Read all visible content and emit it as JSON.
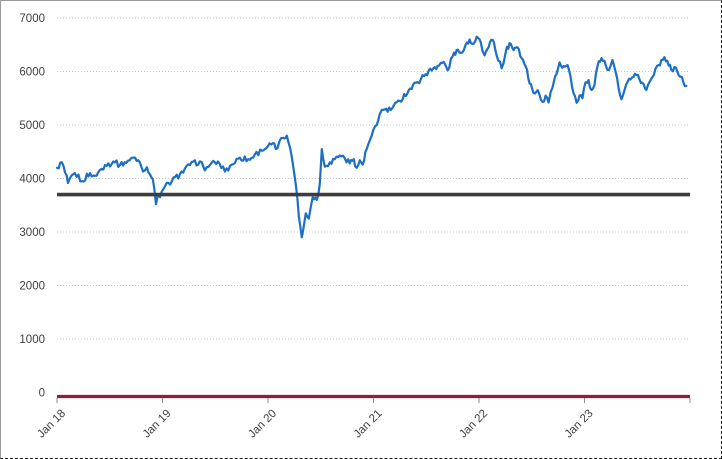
{
  "chart_data": {
    "type": "line",
    "title": "",
    "xlabel": "",
    "ylabel": "",
    "legend": "none",
    "grid": {
      "style": "dotted",
      "color": "#c9c9c9"
    },
    "label_color": "#3f3f3f",
    "tick_color": "#8c8c8c",
    "x_axis": {
      "lim": [
        2018.0,
        2024.0
      ],
      "tick_marks": [
        2018,
        2019,
        2020,
        2021,
        2022,
        2023,
        2024
      ],
      "tick_labels": [
        {
          "t": 2018,
          "label": "Jan 18"
        },
        {
          "t": 2019,
          "label": "Jan 19"
        },
        {
          "t": 2020,
          "label": "Jan 20"
        },
        {
          "t": 2021,
          "label": "Jan 21"
        },
        {
          "t": 2022,
          "label": "Jan 22"
        },
        {
          "t": 2023,
          "label": "Jan 23"
        }
      ]
    },
    "y_axis": {
      "lim": [
        0,
        7000
      ],
      "ticks": [
        0,
        1000,
        2000,
        3000,
        4000,
        5000,
        6000,
        7000
      ]
    },
    "reference_lines": [
      {
        "name": "threshold-line-3700",
        "value": 3700,
        "color": "#3d3d3d",
        "width": 3.6
      },
      {
        "name": "baseline-axis-0",
        "value": 0,
        "color": "#8f1d3d",
        "width": 3.2
      }
    ],
    "noise_amplitude": 55,
    "series": [
      {
        "name": "index-price",
        "color": "#1c6fc4",
        "width": 2.2,
        "points": [
          [
            2018.0,
            4200
          ],
          [
            2018.047,
            4300
          ],
          [
            2018.104,
            3915
          ],
          [
            2018.17,
            4100
          ],
          [
            2018.237,
            3950
          ],
          [
            2018.313,
            4100
          ],
          [
            2018.36,
            4050
          ],
          [
            2018.455,
            4250
          ],
          [
            2018.549,
            4300
          ],
          [
            2018.597,
            4250
          ],
          [
            2018.672,
            4330
          ],
          [
            2018.739,
            4390
          ],
          [
            2018.786,
            4300
          ],
          [
            2018.815,
            4130
          ],
          [
            2018.852,
            4210
          ],
          [
            2018.881,
            4080
          ],
          [
            2018.909,
            3980
          ],
          [
            2018.938,
            3520
          ],
          [
            2018.957,
            3700
          ],
          [
            2018.976,
            3650
          ],
          [
            2019.023,
            3850
          ],
          [
            2019.089,
            3950
          ],
          [
            2019.165,
            4080
          ],
          [
            2019.26,
            4250
          ],
          [
            2019.354,
            4320
          ],
          [
            2019.402,
            4150
          ],
          [
            2019.449,
            4250
          ],
          [
            2019.525,
            4320
          ],
          [
            2019.591,
            4130
          ],
          [
            2019.657,
            4260
          ],
          [
            2019.733,
            4390
          ],
          [
            2019.828,
            4350
          ],
          [
            2019.875,
            4450
          ],
          [
            2019.942,
            4520
          ],
          [
            2019.998,
            4600
          ],
          [
            2020.046,
            4660
          ],
          [
            2020.074,
            4550
          ],
          [
            2020.14,
            4760
          ],
          [
            2020.178,
            4800
          ],
          [
            2020.226,
            4400
          ],
          [
            2020.263,
            3900
          ],
          [
            2020.292,
            3300
          ],
          [
            2020.32,
            2900
          ],
          [
            2020.358,
            3350
          ],
          [
            2020.387,
            3250
          ],
          [
            2020.424,
            3650
          ],
          [
            2020.462,
            3600
          ],
          [
            2020.491,
            3900
          ],
          [
            2020.51,
            4550
          ],
          [
            2020.538,
            4220
          ],
          [
            2020.586,
            4300
          ],
          [
            2020.633,
            4360
          ],
          [
            2020.68,
            4430
          ],
          [
            2020.728,
            4380
          ],
          [
            2020.775,
            4280
          ],
          [
            2020.813,
            4360
          ],
          [
            2020.841,
            4200
          ],
          [
            2020.87,
            4340
          ],
          [
            2020.898,
            4260
          ],
          [
            2020.936,
            4550
          ],
          [
            2020.983,
            4800
          ],
          [
            2021.031,
            5000
          ],
          [
            2021.059,
            5200
          ],
          [
            2021.078,
            5280
          ],
          [
            2021.163,
            5280
          ],
          [
            2021.248,
            5450
          ],
          [
            2021.334,
            5650
          ],
          [
            2021.419,
            5800
          ],
          [
            2021.495,
            5950
          ],
          [
            2021.58,
            6080
          ],
          [
            2021.665,
            6180
          ],
          [
            2021.703,
            6020
          ],
          [
            2021.75,
            6280
          ],
          [
            2021.788,
            6400
          ],
          [
            2021.826,
            6350
          ],
          [
            2021.873,
            6500
          ],
          [
            2021.911,
            6600
          ],
          [
            2021.949,
            6520
          ],
          [
            2021.978,
            6650
          ],
          [
            2022.016,
            6550
          ],
          [
            2022.053,
            6300
          ],
          [
            2022.091,
            6450
          ],
          [
            2022.129,
            6590
          ],
          [
            2022.167,
            6300
          ],
          [
            2022.215,
            6060
          ],
          [
            2022.252,
            6350
          ],
          [
            2022.29,
            6530
          ],
          [
            2022.328,
            6400
          ],
          [
            2022.366,
            6450
          ],
          [
            2022.404,
            6250
          ],
          [
            2022.442,
            6100
          ],
          [
            2022.48,
            5780
          ],
          [
            2022.518,
            5600
          ],
          [
            2022.556,
            5650
          ],
          [
            2022.603,
            5430
          ],
          [
            2022.631,
            5550
          ],
          [
            2022.66,
            5420
          ],
          [
            2022.697,
            5700
          ],
          [
            2022.735,
            5950
          ],
          [
            2022.764,
            6170
          ],
          [
            2022.802,
            6100
          ],
          [
            2022.84,
            6120
          ],
          [
            2022.868,
            5900
          ],
          [
            2022.896,
            5600
          ],
          [
            2022.925,
            5415
          ],
          [
            2022.953,
            5550
          ],
          [
            2022.981,
            5500
          ],
          [
            2023.01,
            5800
          ],
          [
            2023.038,
            5840
          ],
          [
            2023.067,
            5655
          ],
          [
            2023.095,
            5750
          ],
          [
            2023.123,
            6100
          ],
          [
            2023.161,
            6250
          ],
          [
            2023.19,
            6200
          ],
          [
            2023.218,
            6030
          ],
          [
            2023.246,
            6100
          ],
          [
            2023.265,
            6215
          ],
          [
            2023.294,
            6000
          ],
          [
            2023.322,
            5700
          ],
          [
            2023.351,
            5480
          ],
          [
            2023.379,
            5650
          ],
          [
            2023.407,
            5800
          ],
          [
            2023.436,
            5850
          ],
          [
            2023.464,
            5900
          ],
          [
            2023.492,
            5935
          ],
          [
            2023.521,
            5850
          ],
          [
            2023.549,
            5790
          ],
          [
            2023.587,
            5655
          ],
          [
            2023.615,
            5800
          ],
          [
            2023.644,
            5900
          ],
          [
            2023.672,
            6050
          ],
          [
            2023.7,
            6120
          ],
          [
            2023.729,
            6215
          ],
          [
            2023.757,
            6270
          ],
          [
            2023.785,
            6200
          ],
          [
            2023.823,
            6030
          ],
          [
            2023.852,
            6085
          ],
          [
            2023.88,
            6000
          ],
          [
            2023.908,
            5900
          ],
          [
            2023.937,
            5800
          ],
          [
            2023.965,
            5730
          ]
        ]
      }
    ]
  }
}
